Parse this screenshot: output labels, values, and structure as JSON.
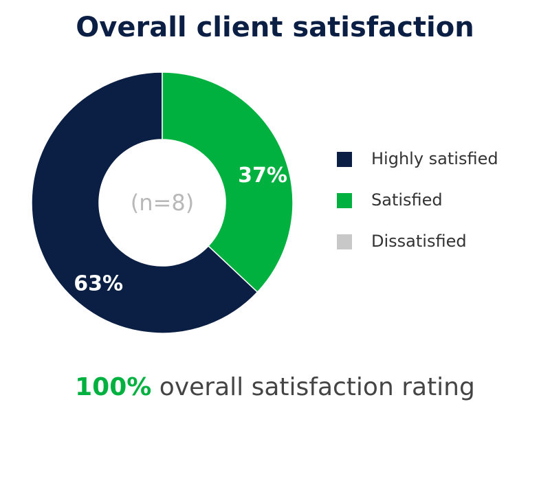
{
  "chart_data": {
    "type": "donut",
    "title": "Overall client satisfaction",
    "categories": [
      "Highly satisfied",
      "Satisfied",
      "Dissatisfied"
    ],
    "values": [
      63,
      37,
      0
    ],
    "value_labels": [
      "63%",
      "37%",
      null
    ],
    "colors": [
      "#0b1f45",
      "#00b140",
      "#c8c8c8"
    ],
    "center_label": "(n=8)"
  },
  "footer": {
    "highlight": "100%",
    "text": "overall satisfaction rating"
  }
}
